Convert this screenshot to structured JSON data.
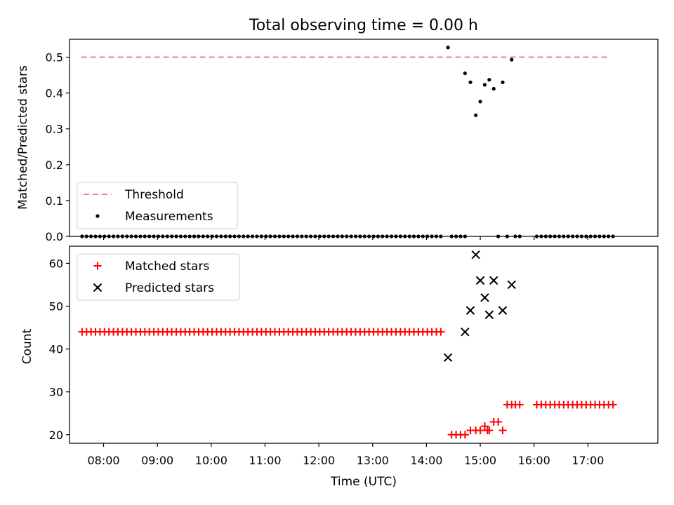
{
  "title": "Total observing time = 0.00 h",
  "chart_data": [
    {
      "type": "scatter",
      "ylabel": "Matched/Predicted stars",
      "ylim": [
        0,
        0.55
      ],
      "yticks": [
        0,
        0.1,
        0.2,
        0.3,
        0.4,
        0.5
      ],
      "ytick_labels": [
        "0.0",
        "0.1",
        "0.2",
        "0.3",
        "0.4",
        "0.5"
      ],
      "legend_position": "lower-left",
      "series": [
        {
          "name": "Threshold",
          "kind": "line",
          "style": "dashed",
          "color": "#f08080",
          "x": [
            "07:35",
            "17:25"
          ],
          "y": [
            0.5,
            0.5
          ]
        },
        {
          "name": "Measurements",
          "kind": "scatter",
          "marker": "dot",
          "color": "#000000",
          "x": [
            "14:24",
            "14:43",
            "14:49",
            "14:55",
            "15:00",
            "15:05",
            "15:10",
            "15:15",
            "15:20",
            "15:25",
            "15:30",
            "15:35"
          ],
          "y": [
            0.527,
            0.455,
            0.43,
            0.338,
            0.376,
            0.423,
            0.437,
            0.412,
            0.0,
            0.43,
            0.0,
            0.493
          ],
          "zero_rows": [
            [
              "07:36",
              "14:19"
            ],
            [
              "14:28",
              "14:43"
            ],
            [
              "15:39",
              "15:45"
            ],
            [
              "16:03",
              "17:30"
            ]
          ]
        }
      ]
    },
    {
      "type": "scatter",
      "xlabel": "Time (UTC)",
      "ylabel": "Count",
      "ylim": [
        18,
        64
      ],
      "yticks": [
        20,
        30,
        40,
        50,
        60
      ],
      "ytick_labels": [
        "20",
        "30",
        "40",
        "50",
        "60"
      ],
      "xlim": [
        "07:22",
        "18:18"
      ],
      "xticks": [
        "08:00",
        "09:00",
        "10:00",
        "11:00",
        "12:00",
        "13:00",
        "14:00",
        "15:00",
        "16:00",
        "17:00"
      ],
      "legend_position": "upper-left",
      "series": [
        {
          "name": "Matched stars",
          "kind": "scatter",
          "marker": "plus",
          "color": "#ff0000",
          "rows": [
            {
              "from": "07:36",
              "to": "14:19",
              "y": 44
            },
            {
              "from": "14:28",
              "to": "14:43",
              "y": 20
            },
            {
              "from": "15:39",
              "to": "15:45",
              "y": 27
            },
            {
              "from": "16:03",
              "to": "17:30",
              "y": 27
            }
          ],
          "x": [
            "14:49",
            "14:55",
            "15:00",
            "15:05",
            "15:08",
            "15:10",
            "15:15",
            "15:20",
            "15:25",
            "15:30",
            "15:35"
          ],
          "y": [
            21,
            21,
            21,
            22,
            21,
            21,
            23,
            23,
            21,
            27,
            27
          ]
        },
        {
          "name": "Predicted stars",
          "kind": "scatter",
          "marker": "x",
          "color": "#000000",
          "x": [
            "14:24",
            "14:43",
            "14:49",
            "14:55",
            "15:00",
            "15:05",
            "15:10",
            "15:15",
            "15:25",
            "15:35"
          ],
          "y": [
            38,
            44,
            49,
            62,
            56,
            52,
            48,
            56,
            49,
            55
          ]
        }
      ]
    }
  ]
}
